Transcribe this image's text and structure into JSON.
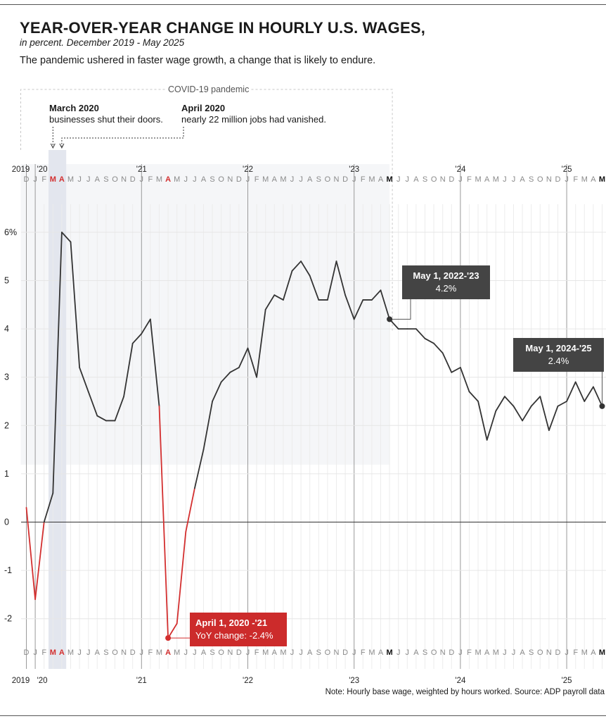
{
  "header": {
    "title": "YEAR-OVER-YEAR CHANGE IN HOURLY U.S. WAGES,",
    "subtitle": "in percent. December 2019 - May 2025",
    "description": "The pandemic ushered in faster wage growth, a change that is likely to endure."
  },
  "footer": {
    "note": "Note: Hourly base wage, weighted by hours worked. Source: ADP payroll data"
  },
  "annotations": {
    "covid_label": "COVID-19 pandemic",
    "march2020_title": "March 2020",
    "march2020_text": "businesses shut their doors.",
    "april2020_title": "April 2020",
    "april2020_text": "nearly 22 million jobs had vanished.",
    "callout_2223_title": "May 1, 2022-'23",
    "callout_2223_value": "4.2%",
    "callout_2425_title": "May 1, 2024-'25",
    "callout_2425_value": "2.4%",
    "callout_2021_title": "April 1, 2020 -'21",
    "callout_2021_value": "YoY change: -2.4%"
  },
  "colors": {
    "line": "#333333",
    "negative": "#d32f2f",
    "highlight_month": "#d32f2f",
    "covid_band": "#f5f6f8",
    "lockdown_band": "#e3e6ee"
  },
  "chart_data": {
    "type": "line",
    "title": "YEAR-OVER-YEAR CHANGE IN HOURLY U.S. WAGES,",
    "subtitle": "in percent. December 2019 - May 2025",
    "xlabel": "",
    "ylabel": "",
    "x_start": "2019-12",
    "x_end": "2025-05",
    "ylim": [
      -2.8,
      7
    ],
    "yticks": [
      -2,
      -1,
      0,
      1,
      2,
      3,
      4,
      5,
      6
    ],
    "ytick_labels": [
      "-2",
      "-1",
      "0",
      "1",
      "2",
      "3",
      "4",
      "5",
      "6%"
    ],
    "grid": true,
    "month_letters": [
      "J",
      "F",
      "M",
      "A",
      "M",
      "J",
      "J",
      "A",
      "S",
      "O",
      "N",
      "D"
    ],
    "year_labels": [
      {
        "label": "2019",
        "x": "2019-12"
      },
      {
        "label": "'20",
        "x": "2020-01"
      },
      {
        "label": "'21",
        "x": "2021-01"
      },
      {
        "label": "'22",
        "x": "2022-01"
      },
      {
        "label": "'23",
        "x": "2023-01"
      },
      {
        "label": "'24",
        "x": "2024-01"
      },
      {
        "label": "'25",
        "x": "2025-01"
      }
    ],
    "highlight_months": [
      {
        "x": "2020-03",
        "color": "#d32f2f"
      },
      {
        "x": "2020-04",
        "color": "#d32f2f"
      },
      {
        "x": "2021-04",
        "color": "#d32f2f"
      },
      {
        "x": "2023-05",
        "color": "#111111"
      },
      {
        "x": "2025-05",
        "color": "#111111"
      }
    ],
    "shaded_periods": [
      {
        "from": "2019-12",
        "to": "2023-05",
        "name": "COVID-19 pandemic"
      },
      {
        "from": "2020-03",
        "to": "2020-04",
        "name": "lockdown"
      }
    ],
    "x": [
      "2019-12",
      "2020-01",
      "2020-02",
      "2020-03",
      "2020-04",
      "2020-05",
      "2020-06",
      "2020-07",
      "2020-08",
      "2020-09",
      "2020-10",
      "2020-11",
      "2020-12",
      "2021-01",
      "2021-02",
      "2021-03",
      "2021-04",
      "2021-05",
      "2021-06",
      "2021-07",
      "2021-08",
      "2021-09",
      "2021-10",
      "2021-11",
      "2021-12",
      "2022-01",
      "2022-02",
      "2022-03",
      "2022-04",
      "2022-05",
      "2022-06",
      "2022-07",
      "2022-08",
      "2022-09",
      "2022-10",
      "2022-11",
      "2022-12",
      "2023-01",
      "2023-02",
      "2023-03",
      "2023-04",
      "2023-05",
      "2023-06",
      "2023-07",
      "2023-08",
      "2023-09",
      "2023-10",
      "2023-11",
      "2023-12",
      "2024-01",
      "2024-02",
      "2024-03",
      "2024-04",
      "2024-05",
      "2024-06",
      "2024-07",
      "2024-08",
      "2024-09",
      "2024-10",
      "2024-11",
      "2024-12",
      "2025-01",
      "2025-02",
      "2025-03",
      "2025-04",
      "2025-05"
    ],
    "series": [
      {
        "values": [
          0.3,
          -1.6,
          0.0,
          0.6,
          6.0,
          5.8,
          3.2,
          2.7,
          2.2,
          2.1,
          2.1,
          2.6,
          3.7,
          3.9,
          4.2,
          2.4,
          -2.4,
          -2.1,
          -0.2,
          0.7,
          1.5,
          2.5,
          2.9,
          3.1,
          3.2,
          3.6,
          3.0,
          4.4,
          4.7,
          4.6,
          5.2,
          5.4,
          5.1,
          4.6,
          4.6,
          5.4,
          4.7,
          4.2,
          4.6,
          4.6,
          4.8,
          4.2,
          4.0,
          4.0,
          4.0,
          3.8,
          3.7,
          3.5,
          3.1,
          3.2,
          2.7,
          2.5,
          1.7,
          2.3,
          2.6,
          2.4,
          2.1,
          2.4,
          2.6,
          1.9,
          2.4,
          2.5,
          2.9,
          2.5,
          2.8,
          2.4
        ]
      }
    ],
    "callout_points": [
      {
        "x": "2023-05",
        "y": 4.2
      },
      {
        "x": "2025-05",
        "y": 2.4
      },
      {
        "x": "2021-04",
        "y": -2.4
      }
    ]
  }
}
